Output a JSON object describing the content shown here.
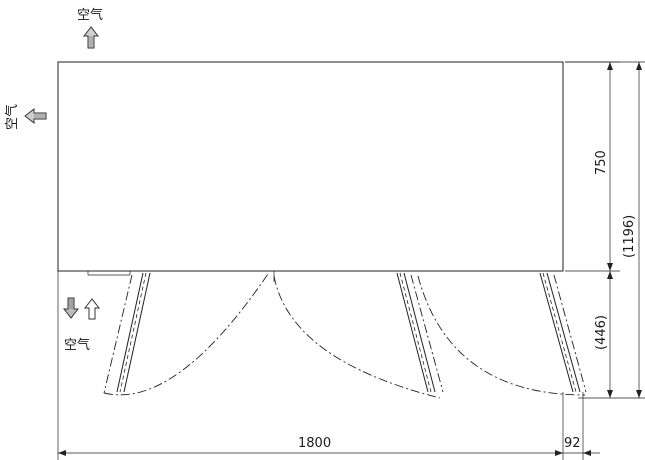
{
  "labels": {
    "air_top": "空气",
    "air_left": "空气",
    "air_bottom": "空气"
  },
  "dimensions": {
    "width": "1800",
    "door_offset": "92",
    "depth": "750",
    "total_depth": "(1196)",
    "swing_depth": "(446)"
  }
}
